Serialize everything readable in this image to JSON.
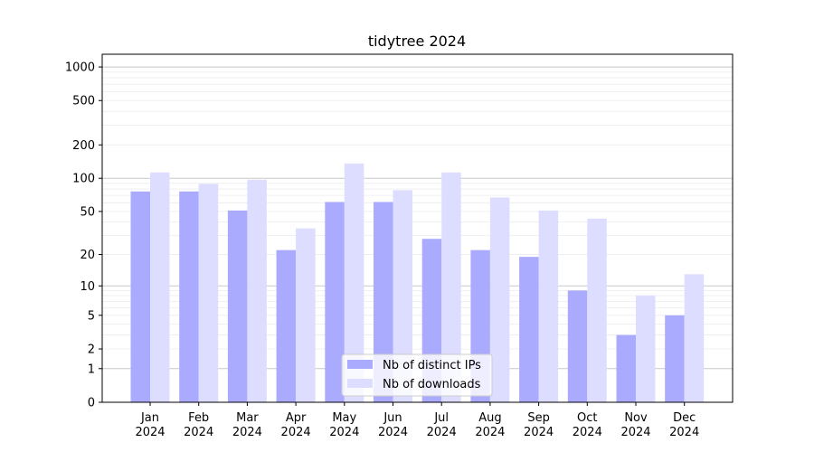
{
  "chart_data": {
    "type": "bar",
    "title": "tidytree 2024",
    "categories": [
      [
        "Jan",
        "2024"
      ],
      [
        "Feb",
        "2024"
      ],
      [
        "Mar",
        "2024"
      ],
      [
        "Apr",
        "2024"
      ],
      [
        "May",
        "2024"
      ],
      [
        "Jun",
        "2024"
      ],
      [
        "Jul",
        "2024"
      ],
      [
        "Aug",
        "2024"
      ],
      [
        "Sep",
        "2024"
      ],
      [
        "Oct",
        "2024"
      ],
      [
        "Nov",
        "2024"
      ],
      [
        "Dec",
        "2024"
      ]
    ],
    "series": [
      {
        "name": "Nb of distinct IPs",
        "color": "#aaaaff",
        "values": [
          76,
          76,
          51,
          22,
          61,
          61,
          28,
          22,
          19,
          9,
          3,
          5
        ]
      },
      {
        "name": "Nb of downloads",
        "color": "#ddddff",
        "values": [
          113,
          89,
          97,
          35,
          136,
          78,
          113,
          67,
          51,
          43,
          8,
          13
        ]
      }
    ],
    "yscale": "log1p",
    "ylim": [
      0,
      1300
    ],
    "yticks": [
      0,
      1,
      2,
      5,
      10,
      20,
      50,
      100,
      200,
      500,
      1000
    ],
    "ytick_labels": [
      "0",
      "1",
      "2",
      "5",
      "10",
      "20",
      "50",
      "100",
      "200",
      "500",
      "1000"
    ],
    "major_grid": [
      1,
      10,
      100,
      1000
    ],
    "xlabel": "",
    "ylabel": "",
    "grid": true,
    "legend_position": "lower-center"
  }
}
